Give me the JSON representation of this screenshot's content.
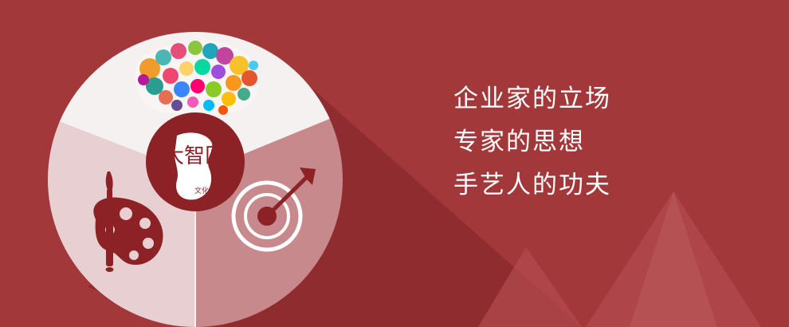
{
  "colors": {
    "background": "#a3383b",
    "top_segment": "#f5f1f1",
    "left_segment": "#e8cfd1",
    "right_segment": "#c7898b",
    "emblem": "#8c2226",
    "icon_dark": "#8c2226",
    "icon_light": "#ffffff"
  },
  "icons": {
    "brain": "colorful-brain-icon",
    "logo": "brand-seal-logo",
    "palette": "paint-palette-icon",
    "target": "target-arrow-icon"
  },
  "logo": {
    "text": "大智匠",
    "subtext": "文化传播"
  },
  "tagline": [
    "企业家的立场",
    "专家的思想",
    "手艺人的功夫"
  ]
}
